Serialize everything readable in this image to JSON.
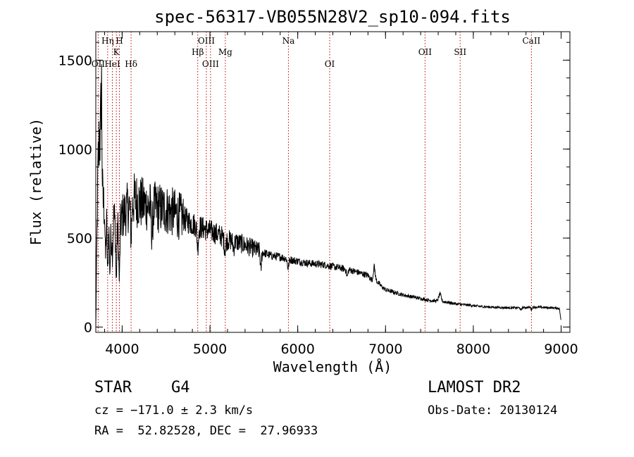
{
  "chart_data": {
    "type": "line",
    "title": "spec-56317-VB055N28V2_sp10-094.fits",
    "xlabel": "Wavelength (Å)",
    "ylabel": "Flux (relative)",
    "xlim": [
      3700,
      9100
    ],
    "ylim": [
      -30,
      1660
    ],
    "xticks": [
      4000,
      5000,
      6000,
      7000,
      8000,
      9000
    ],
    "yticks": [
      0,
      500,
      1000,
      1500
    ],
    "x_minor_step": 200,
    "y_minor_step": 100,
    "grid": false,
    "series": [
      {
        "color": "#000000",
        "anchors": [
          [
            3700,
            0
          ],
          [
            3710,
            380
          ],
          [
            3725,
            900
          ],
          [
            3740,
            850
          ],
          [
            3760,
            1200
          ],
          [
            3780,
            700
          ],
          [
            3800,
            680
          ],
          [
            3820,
            600
          ],
          [
            3850,
            550
          ],
          [
            3870,
            500
          ],
          [
            3900,
            620
          ],
          [
            3930,
            580
          ],
          [
            3960,
            550
          ],
          [
            4000,
            620
          ],
          [
            4050,
            660
          ],
          [
            4100,
            700
          ],
          [
            4150,
            720
          ],
          [
            4200,
            700
          ],
          [
            4300,
            680
          ],
          [
            4400,
            670
          ],
          [
            4500,
            660
          ],
          [
            4600,
            640
          ],
          [
            4700,
            610
          ],
          [
            4800,
            580
          ],
          [
            4900,
            560
          ],
          [
            5000,
            540
          ],
          [
            5100,
            520
          ],
          [
            5200,
            490
          ],
          [
            5300,
            480
          ],
          [
            5400,
            460
          ],
          [
            5500,
            440
          ],
          [
            5600,
            420
          ],
          [
            5700,
            400
          ],
          [
            5800,
            395
          ],
          [
            5900,
            380
          ],
          [
            6000,
            370
          ],
          [
            6100,
            360
          ],
          [
            6200,
            355
          ],
          [
            6300,
            350
          ],
          [
            6400,
            340
          ],
          [
            6500,
            330
          ],
          [
            6600,
            320
          ],
          [
            6700,
            305
          ],
          [
            6800,
            290
          ],
          [
            6850,
            260
          ],
          [
            6880,
            270
          ],
          [
            6950,
            230
          ],
          [
            7000,
            210
          ],
          [
            7100,
            195
          ],
          [
            7200,
            180
          ],
          [
            7300,
            170
          ],
          [
            7400,
            160
          ],
          [
            7500,
            150
          ],
          [
            7600,
            145
          ],
          [
            7700,
            140
          ],
          [
            7800,
            130
          ],
          [
            7900,
            125
          ],
          [
            8000,
            120
          ],
          [
            8100,
            115
          ],
          [
            8200,
            112
          ],
          [
            8300,
            110
          ],
          [
            8400,
            108
          ],
          [
            8500,
            108
          ],
          [
            8600,
            110
          ],
          [
            8700,
            112
          ],
          [
            8800,
            110
          ],
          [
            8900,
            108
          ],
          [
            8980,
            105
          ],
          [
            9000,
            30
          ]
        ],
        "features": [
          {
            "x": 3740,
            "dy": 200,
            "w": 6
          },
          {
            "x": 3765,
            "dy": 300,
            "w": 4
          },
          {
            "x": 3810,
            "dy": -250,
            "w": 5
          },
          {
            "x": 3835,
            "dy": -280,
            "w": 5
          },
          {
            "x": 3860,
            "dy": -200,
            "w": 5
          },
          {
            "x": 3890,
            "dy": -150,
            "w": 6
          },
          {
            "x": 3933,
            "dy": -320,
            "w": 6
          },
          {
            "x": 3968,
            "dy": -300,
            "w": 6
          },
          {
            "x": 4102,
            "dy": -180,
            "w": 8
          },
          {
            "x": 4340,
            "dy": -150,
            "w": 8
          },
          {
            "x": 4861,
            "dy": -120,
            "w": 8
          },
          {
            "x": 5172,
            "dy": -60,
            "w": 10
          },
          {
            "x": 5270,
            "dy": -40,
            "w": 8
          },
          {
            "x": 5580,
            "dy": -110,
            "w": 6
          },
          {
            "x": 5890,
            "dy": -50,
            "w": 8
          },
          {
            "x": 6563,
            "dy": -40,
            "w": 8
          },
          {
            "x": 6870,
            "dy": 70,
            "w": 10
          },
          {
            "x": 7620,
            "dy": 40,
            "w": 14
          },
          {
            "x": 8542,
            "dy": -15,
            "w": 6
          },
          {
            "x": 8662,
            "dy": -15,
            "w": 6
          }
        ]
      }
    ],
    "line_markers": [
      {
        "label": "OII",
        "x": 3727,
        "row": 3
      },
      {
        "label": "Hη",
        "x": 3835,
        "row": 1
      },
      {
        "label": "HeI",
        "x": 3889,
        "row": 3
      },
      {
        "label": "K",
        "x": 3934,
        "row": 2
      },
      {
        "label": "H",
        "x": 3969,
        "row": 1
      },
      {
        "label": "Hδ",
        "x": 4102,
        "row": 3
      },
      {
        "label": "Hβ",
        "x": 4861,
        "row": 2
      },
      {
        "label": "OIII",
        "x": 4959,
        "row": 1
      },
      {
        "label": "OIII",
        "x": 5007,
        "row": 3
      },
      {
        "label": "Mg",
        "x": 5175,
        "row": 2
      },
      {
        "label": "Na",
        "x": 5894,
        "row": 1
      },
      {
        "label": "OI",
        "x": 6364,
        "row": 3
      },
      {
        "label": "OII",
        "x": 7450,
        "row": 2
      },
      {
        "label": "SII",
        "x": 7850,
        "row": 2
      },
      {
        "label": "CaII",
        "x": 8662,
        "row": 1
      }
    ],
    "marker_color": "#c00000"
  },
  "info": {
    "object_class": "STAR",
    "subclass": "G4",
    "survey": "LAMOST DR2",
    "redshift": "cz = −171.0 ± 2.3 km/s",
    "obs_date": "Obs-Date: 20130124",
    "coords": "RA =  52.82528, DEC =  27.96933"
  }
}
